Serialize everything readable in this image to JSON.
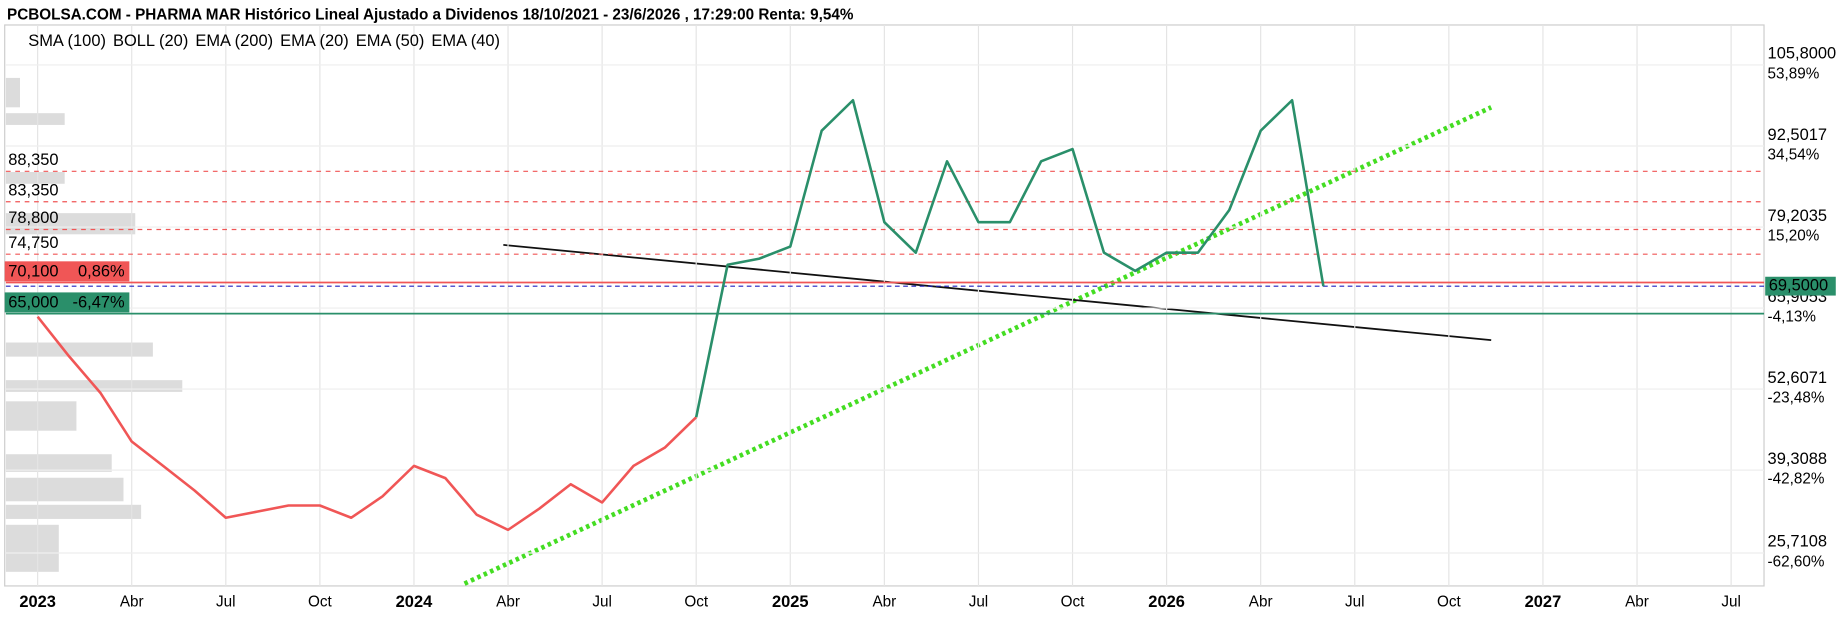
{
  "chart_data": {
    "type": "line",
    "title": "PCBOLSA.COM - PHARMA MAR Histórico Lineal Ajustado a Dividenos 18/10/2021 - 23/6/2026 , 17:29:00 Renta: 9,54%",
    "indicators": [
      {
        "name": "SMA (100)",
        "color": "#8ec9f0"
      },
      {
        "name": "BOLL (20)",
        "color": "#d0d0d0"
      },
      {
        "name": "EMA (200)",
        "color": "#f04848"
      },
      {
        "name": "EMA (20)",
        "color": "#e020e0"
      },
      {
        "name": "EMA (50)",
        "color": "#1010c0"
      },
      {
        "name": "EMA (40)",
        "color": "#2aa070"
      }
    ],
    "x": [
      "2023-01",
      "2023-02",
      "2023-03",
      "2023-04",
      "2023-05",
      "2023-06",
      "2023-07",
      "2023-08",
      "2023-09",
      "2023-10",
      "2023-11",
      "2023-12",
      "2024-01",
      "2024-02",
      "2024-03",
      "2024-04",
      "2024-05",
      "2024-06",
      "2024-07",
      "2024-08",
      "2024-09",
      "2024-10",
      "2024-11",
      "2024-12",
      "2025-01",
      "2025-02",
      "2025-03",
      "2025-04",
      "2025-05",
      "2025-06",
      "2025-07",
      "2025-08",
      "2025-09",
      "2025-10",
      "2025-11",
      "2025-12",
      "2026-01",
      "2026-02",
      "2026-03",
      "2026-04",
      "2026-05",
      "2026-06"
    ],
    "series": [
      {
        "color": "#f05656",
        "values": [
          64.5,
          58,
          52,
          44,
          40,
          36,
          31.5,
          32.5,
          33.5,
          33.5,
          31.5,
          35,
          40,
          38,
          32,
          29.5,
          33,
          37,
          34,
          40,
          43,
          48,
          null,
          null,
          null,
          null,
          null,
          null,
          null,
          null,
          null,
          null,
          null,
          null,
          null,
          null,
          null,
          null,
          null,
          null,
          null,
          null
        ]
      },
      {
        "color": "#2a8f6a",
        "values": [
          null,
          null,
          null,
          null,
          null,
          null,
          null,
          null,
          null,
          null,
          null,
          null,
          null,
          null,
          null,
          null,
          null,
          null,
          null,
          null,
          null,
          48,
          73,
          74,
          76,
          95,
          100,
          80,
          75,
          90,
          80,
          80,
          90,
          92,
          75,
          72,
          75,
          75,
          82,
          95,
          100,
          69.5
        ]
      }
    ],
    "xticks": [
      {
        "value": "2023-01",
        "label": "2023"
      },
      {
        "value": "2023-04",
        "label": "Abr"
      },
      {
        "value": "2023-07",
        "label": "Jul"
      },
      {
        "value": "2023-10",
        "label": "Oct"
      },
      {
        "value": "2024-01",
        "label": "2024"
      },
      {
        "value": "2024-04",
        "label": "Abr"
      },
      {
        "value": "2024-07",
        "label": "Jul"
      },
      {
        "value": "2024-10",
        "label": "Oct"
      },
      {
        "value": "2025-01",
        "label": "2025"
      },
      {
        "value": "2025-04",
        "label": "Abr"
      },
      {
        "value": "2025-07",
        "label": "Jul"
      },
      {
        "value": "2025-10",
        "label": "Oct"
      },
      {
        "value": "2026-01",
        "label": "2026"
      },
      {
        "value": "2026-04",
        "label": "Abr"
      },
      {
        "value": "2026-07",
        "label": "Jul"
      },
      {
        "value": "2026-10",
        "label": "Oct"
      },
      {
        "value": "2027-01",
        "label": "2027"
      },
      {
        "value": "2027-04",
        "label": "Abr"
      },
      {
        "value": "2027-07",
        "label": "Jul"
      }
    ],
    "ylim": [
      20.3,
      112.36
    ],
    "yticks": [
      {
        "value": 105.8,
        "label": "105,8000"
      },
      {
        "value": 92.5017,
        "label": "92,5017"
      },
      {
        "value": 79.2035,
        "label": "79,2035"
      },
      {
        "value": 65.9053,
        "label": "65,9053"
      },
      {
        "value": 52.6071,
        "label": "52,6071"
      },
      {
        "value": 39.3088,
        "label": "39,3088"
      },
      {
        "value": 25.7108,
        "label": "25,7108"
      }
    ],
    "y2lim": [
      -68.21,
      65.68
    ],
    "y2ticks": [
      {
        "value": 53.89,
        "label": "53,89%"
      },
      {
        "value": 34.54,
        "label": "34,54%"
      },
      {
        "value": 15.2,
        "label": "15,20%"
      },
      {
        "value": -4.13,
        "label": "-4,13%"
      },
      {
        "value": -23.48,
        "label": "-23,48%"
      },
      {
        "value": -42.82,
        "label": "-42,82%"
      },
      {
        "value": -62.6,
        "label": "-62,60%"
      }
    ],
    "levels": [
      {
        "value": 88.35,
        "label": "88,350"
      },
      {
        "value": 83.35,
        "label": "83,350"
      },
      {
        "value": 78.8,
        "label": "78,800"
      },
      {
        "value": 74.75,
        "label": "74,750"
      }
    ],
    "boxed_levels": [
      {
        "value": 70.1,
        "label": "70,100",
        "change": 0.86,
        "change_label": "0,86%",
        "color": "#f05656"
      },
      {
        "value": 65.0,
        "label": "65,000",
        "change": -6.47,
        "change_label": "-6,47%",
        "color": "#2a8f6a"
      }
    ],
    "last_price": {
      "value": 69.5,
      "label": "69,5000",
      "color": "#2a8f6a"
    },
    "grid": true
  }
}
